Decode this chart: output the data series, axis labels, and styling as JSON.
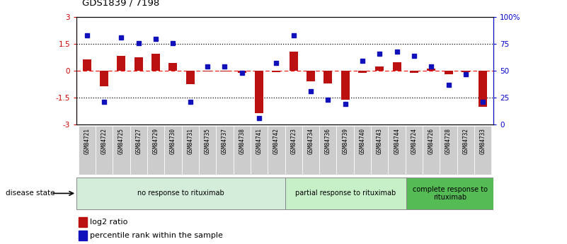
{
  "title": "GDS1839 / 7198",
  "samples": [
    "GSM84721",
    "GSM84722",
    "GSM84725",
    "GSM84727",
    "GSM84729",
    "GSM84730",
    "GSM84731",
    "GSM84735",
    "GSM84737",
    "GSM84738",
    "GSM84741",
    "GSM84742",
    "GSM84723",
    "GSM84734",
    "GSM84736",
    "GSM84739",
    "GSM84740",
    "GSM84743",
    "GSM84744",
    "GSM84724",
    "GSM84726",
    "GSM84728",
    "GSM84732",
    "GSM84733"
  ],
  "log2_ratio": [
    0.65,
    -0.85,
    0.85,
    0.75,
    0.95,
    0.45,
    -0.75,
    -0.04,
    -0.04,
    -0.1,
    -2.35,
    -0.08,
    1.05,
    -0.58,
    -0.72,
    -1.62,
    -0.12,
    0.22,
    0.48,
    -0.12,
    0.12,
    -0.18,
    -0.08,
    -2.0
  ],
  "percentile": [
    83,
    21,
    81,
    76,
    80,
    76,
    21,
    54,
    54,
    48,
    6,
    57,
    83,
    31,
    23,
    19,
    59,
    66,
    68,
    64,
    54,
    37,
    47,
    21
  ],
  "groups": [
    {
      "label": "no response to rituximab",
      "start": 0,
      "end": 12,
      "color": "#d4edda"
    },
    {
      "label": "partial response to rituximab",
      "start": 12,
      "end": 19,
      "color": "#c8f0c8"
    },
    {
      "label": "complete response to\nrituximab",
      "start": 19,
      "end": 24,
      "color": "#55bb55"
    }
  ],
  "bar_color": "#bb1111",
  "dot_color": "#1111bb",
  "ylim_left": [
    -3,
    3
  ],
  "ylim_right": [
    0,
    100
  ],
  "yticks_left": [
    -3,
    -1.5,
    0,
    1.5,
    3
  ],
  "yticks_right": [
    0,
    25,
    50,
    75,
    100
  ],
  "ytick_labels_right": [
    "0",
    "25",
    "50",
    "75",
    "100%"
  ],
  "hlines": [
    -1.5,
    0,
    1.5
  ],
  "background_color": "white",
  "label_bg_color": "#cccccc"
}
